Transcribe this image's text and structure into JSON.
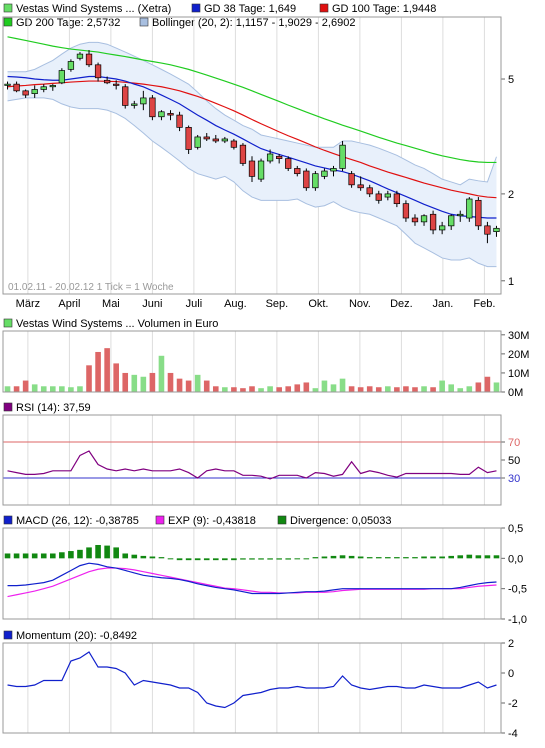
{
  "colors": {
    "price": "#000000",
    "gd38": "#1020cc",
    "gd100": "#e01010",
    "gd200": "#20cc20",
    "bollinger": "#a8bfe0",
    "bollinger_fill": "#e8f0fb",
    "candle_up": "#66dd66",
    "candle_down": "#dd4444",
    "volume_up": "#88dd88",
    "volume_down": "#dd6666",
    "rsi": "#800080",
    "rsi_line_70": "#dd6666",
    "rsi_line_30": "#3333cc",
    "macd": "#1020cc",
    "exp": "#ee22ee",
    "divergence": "#118811",
    "momentum": "#1020cc",
    "grid": "#dddddd"
  },
  "date_range_note": "01.02.11 - 20.02.12   1 Tick = 1 Woche",
  "x_axis_months": [
    "März",
    "April",
    "Mai",
    "Juni",
    "Juli",
    "Aug.",
    "Sep.",
    "Okt.",
    "Nov.",
    "Dez.",
    "Jan.",
    "Feb."
  ],
  "legends": {
    "price": [
      {
        "label": "Vestas Wind Systems ... (Xetra)",
        "icon": "price-swatch"
      },
      {
        "label": "GD 38 Tage: 1,649",
        "icon": "gd38-swatch"
      },
      {
        "label": "GD 100 Tage: 1,9448",
        "icon": "gd100-swatch"
      },
      {
        "label": "GD 200 Tage: 2,5732",
        "icon": "gd200-swatch"
      },
      {
        "label": "Bollinger (20, 2): 1,1157 - 1,9029 - 2,6902",
        "icon": "bollinger-swatch"
      }
    ],
    "volume": [
      {
        "label": "Vestas Wind Systems ... Volumen in Euro",
        "icon": "volume-swatch"
      }
    ],
    "rsi": [
      {
        "label": "RSI (14): 37,59",
        "icon": "rsi-swatch"
      }
    ],
    "macd": [
      {
        "label": "MACD (26, 12): -0,38785",
        "icon": "macd-swatch"
      },
      {
        "label": "EXP (9): -0,43818",
        "icon": "exp-swatch"
      },
      {
        "label": "Divergence: 0,05033",
        "icon": "divergence-swatch"
      }
    ],
    "momentum": [
      {
        "label": "Momentum (20): -0,8492",
        "icon": "momentum-swatch"
      }
    ]
  },
  "chart_data": [
    {
      "type": "candlestick",
      "title": "Vestas Wind Systems ... (Xetra)",
      "y_scale": "log",
      "ylim": [
        0.9,
        8.2
      ],
      "y_ticks": [
        {
          "v": 5,
          "label": "5"
        },
        {
          "v": 2,
          "label": "2"
        },
        {
          "v": 1,
          "label": "1"
        }
      ],
      "weeks": 55,
      "candles": [
        {
          "o": 4.75,
          "h": 4.9,
          "l": 4.6,
          "c": 4.8
        },
        {
          "o": 4.8,
          "h": 4.9,
          "l": 4.5,
          "c": 4.55
        },
        {
          "o": 4.55,
          "h": 4.6,
          "l": 4.3,
          "c": 4.4
        },
        {
          "o": 4.45,
          "h": 4.75,
          "l": 4.3,
          "c": 4.6
        },
        {
          "o": 4.6,
          "h": 4.8,
          "l": 4.5,
          "c": 4.7
        },
        {
          "o": 4.7,
          "h": 4.8,
          "l": 4.55,
          "c": 4.75
        },
        {
          "o": 4.85,
          "h": 5.45,
          "l": 4.8,
          "c": 5.35
        },
        {
          "o": 5.4,
          "h": 5.85,
          "l": 5.3,
          "c": 5.75
        },
        {
          "o": 5.9,
          "h": 6.2,
          "l": 5.8,
          "c": 6.1
        },
        {
          "o": 6.1,
          "h": 6.3,
          "l": 5.5,
          "c": 5.6
        },
        {
          "o": 5.6,
          "h": 5.7,
          "l": 4.9,
          "c": 5.05
        },
        {
          "o": 4.95,
          "h": 5.1,
          "l": 4.8,
          "c": 4.85
        },
        {
          "o": 4.8,
          "h": 4.95,
          "l": 4.6,
          "c": 4.75
        },
        {
          "o": 4.7,
          "h": 4.8,
          "l": 3.95,
          "c": 4.05
        },
        {
          "o": 4.05,
          "h": 4.2,
          "l": 3.95,
          "c": 4.1
        },
        {
          "o": 4.1,
          "h": 4.55,
          "l": 3.9,
          "c": 4.3
        },
        {
          "o": 4.3,
          "h": 4.4,
          "l": 3.6,
          "c": 3.7
        },
        {
          "o": 3.7,
          "h": 3.9,
          "l": 3.6,
          "c": 3.85
        },
        {
          "o": 3.8,
          "h": 3.9,
          "l": 3.6,
          "c": 3.75
        },
        {
          "o": 3.75,
          "h": 3.85,
          "l": 3.3,
          "c": 3.4
        },
        {
          "o": 3.4,
          "h": 3.45,
          "l": 2.75,
          "c": 2.85
        },
        {
          "o": 2.9,
          "h": 3.2,
          "l": 2.85,
          "c": 3.15
        },
        {
          "o": 3.15,
          "h": 3.25,
          "l": 3.05,
          "c": 3.1
        },
        {
          "o": 3.1,
          "h": 3.2,
          "l": 3.0,
          "c": 3.05
        },
        {
          "o": 3.05,
          "h": 3.15,
          "l": 3.0,
          "c": 3.1
        },
        {
          "o": 3.05,
          "h": 3.1,
          "l": 2.85,
          "c": 2.9
        },
        {
          "o": 2.95,
          "h": 3.0,
          "l": 2.5,
          "c": 2.55
        },
        {
          "o": 2.6,
          "h": 2.7,
          "l": 2.2,
          "c": 2.3
        },
        {
          "o": 2.25,
          "h": 2.65,
          "l": 2.2,
          "c": 2.6
        },
        {
          "o": 2.6,
          "h": 2.85,
          "l": 2.55,
          "c": 2.75
        },
        {
          "o": 2.7,
          "h": 2.75,
          "l": 2.55,
          "c": 2.65
        },
        {
          "o": 2.65,
          "h": 2.7,
          "l": 2.4,
          "c": 2.45
        },
        {
          "o": 2.45,
          "h": 2.5,
          "l": 2.3,
          "c": 2.35
        },
        {
          "o": 2.4,
          "h": 2.45,
          "l": 2.05,
          "c": 2.1
        },
        {
          "o": 2.1,
          "h": 2.4,
          "l": 2.05,
          "c": 2.35
        },
        {
          "o": 2.3,
          "h": 2.45,
          "l": 2.25,
          "c": 2.4
        },
        {
          "o": 2.4,
          "h": 2.5,
          "l": 2.3,
          "c": 2.45
        },
        {
          "o": 2.45,
          "h": 3.05,
          "l": 2.4,
          "c": 2.95
        },
        {
          "o": 2.35,
          "h": 2.4,
          "l": 2.1,
          "c": 2.15
        },
        {
          "o": 2.15,
          "h": 2.3,
          "l": 2.05,
          "c": 2.1
        },
        {
          "o": 2.1,
          "h": 2.15,
          "l": 1.95,
          "c": 2.0
        },
        {
          "o": 2.0,
          "h": 2.05,
          "l": 1.85,
          "c": 1.9
        },
        {
          "o": 1.95,
          "h": 2.05,
          "l": 1.9,
          "c": 2.0
        },
        {
          "o": 2.0,
          "h": 2.05,
          "l": 1.8,
          "c": 1.85
        },
        {
          "o": 1.85,
          "h": 1.9,
          "l": 1.6,
          "c": 1.65
        },
        {
          "o": 1.65,
          "h": 1.7,
          "l": 1.55,
          "c": 1.6
        },
        {
          "o": 1.6,
          "h": 1.7,
          "l": 1.55,
          "c": 1.68
        },
        {
          "o": 1.7,
          "h": 1.75,
          "l": 1.45,
          "c": 1.5
        },
        {
          "o": 1.5,
          "h": 1.6,
          "l": 1.45,
          "c": 1.55
        },
        {
          "o": 1.55,
          "h": 1.7,
          "l": 1.5,
          "c": 1.68
        },
        {
          "o": 1.68,
          "h": 1.75,
          "l": 1.6,
          "c": 1.7
        },
        {
          "o": 1.65,
          "h": 1.95,
          "l": 1.6,
          "c": 1.92
        },
        {
          "o": 1.9,
          "h": 1.95,
          "l": 1.5,
          "c": 1.55
        },
        {
          "o": 1.55,
          "h": 1.6,
          "l": 1.35,
          "c": 1.45
        },
        {
          "o": 1.48,
          "h": 1.55,
          "l": 1.42,
          "c": 1.52
        }
      ],
      "gd38": [
        5.1,
        5.08,
        5.05,
        5.0,
        4.97,
        4.95,
        4.95,
        5.0,
        5.05,
        5.1,
        5.1,
        5.05,
        5.0,
        4.92,
        4.8,
        4.7,
        4.55,
        4.4,
        4.25,
        4.1,
        3.92,
        3.75,
        3.6,
        3.45,
        3.33,
        3.22,
        3.1,
        2.98,
        2.87,
        2.8,
        2.74,
        2.68,
        2.62,
        2.56,
        2.5,
        2.46,
        2.42,
        2.39,
        2.34,
        2.28,
        2.22,
        2.15,
        2.08,
        2.02,
        1.96,
        1.9,
        1.84,
        1.79,
        1.74,
        1.7,
        1.68,
        1.67,
        1.66,
        1.65,
        1.65
      ],
      "gd100": [
        4.7,
        4.73,
        4.75,
        4.78,
        4.8,
        4.83,
        4.85,
        4.88,
        4.9,
        4.92,
        4.92,
        4.91,
        4.9,
        4.87,
        4.84,
        4.8,
        4.75,
        4.7,
        4.63,
        4.55,
        4.45,
        4.35,
        4.24,
        4.12,
        4.0,
        3.88,
        3.75,
        3.62,
        3.5,
        3.39,
        3.28,
        3.18,
        3.09,
        3.0,
        2.91,
        2.83,
        2.76,
        2.69,
        2.63,
        2.57,
        2.5,
        2.44,
        2.38,
        2.33,
        2.28,
        2.23,
        2.18,
        2.14,
        2.1,
        2.06,
        2.03,
        2.0,
        1.97,
        1.95,
        1.94
      ],
      "gd200": [
        7.0,
        6.9,
        6.8,
        6.7,
        6.6,
        6.5,
        6.42,
        6.35,
        6.3,
        6.25,
        6.2,
        6.12,
        6.05,
        5.98,
        5.9,
        5.82,
        5.75,
        5.68,
        5.6,
        5.5,
        5.4,
        5.28,
        5.16,
        5.04,
        4.92,
        4.8,
        4.68,
        4.55,
        4.42,
        4.3,
        4.18,
        4.06,
        3.95,
        3.84,
        3.74,
        3.64,
        3.55,
        3.46,
        3.38,
        3.3,
        3.22,
        3.14,
        3.07,
        3.0,
        2.94,
        2.88,
        2.82,
        2.76,
        2.71,
        2.67,
        2.63,
        2.6,
        2.58,
        2.57,
        2.57
      ],
      "boll_upper": [
        5.3,
        5.3,
        5.3,
        5.4,
        5.6,
        5.8,
        6.1,
        6.4,
        6.6,
        6.7,
        6.7,
        6.6,
        6.4,
        6.2,
        6.0,
        5.8,
        5.6,
        5.4,
        5.2,
        5.0,
        4.8,
        4.5,
        4.2,
        3.95,
        3.75,
        3.6,
        3.45,
        3.35,
        3.2,
        3.15,
        3.1,
        3.05,
        3.0,
        2.95,
        2.9,
        2.9,
        2.9,
        3.05,
        3.05,
        3.0,
        2.95,
        2.88,
        2.8,
        2.72,
        2.62,
        2.52,
        2.45,
        2.35,
        2.25,
        2.2,
        2.15,
        2.25,
        2.22,
        2.2,
        2.69
      ],
      "boll_lower": [
        4.2,
        4.25,
        4.3,
        4.3,
        4.3,
        4.25,
        4.1,
        4.0,
        3.95,
        3.95,
        3.95,
        3.9,
        3.8,
        3.65,
        3.45,
        3.25,
        3.05,
        2.9,
        2.75,
        2.6,
        2.45,
        2.35,
        2.3,
        2.25,
        2.3,
        2.2,
        2.05,
        1.95,
        1.9,
        1.9,
        1.9,
        1.9,
        1.92,
        1.85,
        1.8,
        1.82,
        1.88,
        1.8,
        1.75,
        1.72,
        1.7,
        1.65,
        1.6,
        1.55,
        1.45,
        1.35,
        1.3,
        1.25,
        1.2,
        1.18,
        1.18,
        1.2,
        1.15,
        1.12,
        1.12
      ]
    },
    {
      "type": "bar",
      "title": "Vestas Wind Systems ... Volumen in Euro",
      "unit": "M",
      "ylim": [
        0,
        32
      ],
      "y_ticks": [
        {
          "v": 30,
          "label": "30M"
        },
        {
          "v": 20,
          "label": "20M"
        },
        {
          "v": 10,
          "label": "10M"
        },
        {
          "v": 0,
          "label": "0M"
        }
      ],
      "values": [
        3,
        3,
        6,
        4,
        3,
        3,
        3,
        2.5,
        3,
        14,
        21,
        23,
        15,
        10,
        9,
        8,
        10,
        19,
        10,
        7,
        6,
        9,
        6,
        3,
        2.5,
        2.5,
        2,
        3,
        2,
        3,
        2.5,
        3,
        4,
        5,
        2,
        6,
        4,
        7,
        3,
        2.5,
        3,
        2.5,
        3,
        2.5,
        3,
        2.5,
        3,
        2.5,
        6,
        4,
        2,
        3,
        5,
        8,
        5
      ]
    },
    {
      "type": "line",
      "title": "RSI (14): 37,59",
      "ylim": [
        0,
        100
      ],
      "y_ticks": [
        {
          "v": 70,
          "label": "70"
        },
        {
          "v": 50,
          "label": "50"
        },
        {
          "v": 30,
          "label": "30"
        }
      ],
      "reference_lines": [
        70,
        30
      ],
      "values": [
        38,
        36,
        34,
        34,
        35,
        38,
        38,
        38,
        55,
        60,
        45,
        40,
        38,
        40,
        38,
        40,
        38,
        38,
        38,
        40,
        36,
        30,
        38,
        40,
        38,
        38,
        33,
        33,
        32,
        29,
        33,
        33,
        33,
        30,
        36,
        35,
        32,
        34,
        48,
        35,
        38,
        36,
        33,
        31,
        35,
        35,
        35,
        35,
        35,
        35,
        34,
        34,
        42,
        36,
        38
      ]
    },
    {
      "type": "line+bar",
      "title": "MACD (26, 12): -0,38785",
      "ylim": [
        -1.0,
        0.5
      ],
      "y_ticks": [
        {
          "v": 0.5,
          "label": "0,5"
        },
        {
          "v": 0.0,
          "label": "0,0"
        },
        {
          "v": -0.5,
          "label": "-0,5"
        },
        {
          "v": -1.0,
          "label": "-1,0"
        }
      ],
      "series": [
        {
          "name": "MACD",
          "values": [
            -0.45,
            -0.45,
            -0.44,
            -0.42,
            -0.4,
            -0.36,
            -0.28,
            -0.2,
            -0.12,
            -0.08,
            -0.1,
            -0.14,
            -0.16,
            -0.2,
            -0.24,
            -0.28,
            -0.3,
            -0.32,
            -0.33,
            -0.35,
            -0.38,
            -0.42,
            -0.45,
            -0.48,
            -0.5,
            -0.52,
            -0.55,
            -0.58,
            -0.58,
            -0.58,
            -0.58,
            -0.57,
            -0.56,
            -0.55,
            -0.55,
            -0.54,
            -0.52,
            -0.5,
            -0.5,
            -0.5,
            -0.5,
            -0.5,
            -0.5,
            -0.5,
            -0.5,
            -0.5,
            -0.5,
            -0.5,
            -0.5,
            -0.5,
            -0.48,
            -0.45,
            -0.42,
            -0.4,
            -0.39
          ]
        },
        {
          "name": "EXP",
          "values": [
            -0.63,
            -0.6,
            -0.57,
            -0.54,
            -0.5,
            -0.46,
            -0.4,
            -0.34,
            -0.28,
            -0.22,
            -0.18,
            -0.16,
            -0.16,
            -0.17,
            -0.19,
            -0.22,
            -0.25,
            -0.28,
            -0.31,
            -0.34,
            -0.37,
            -0.4,
            -0.43,
            -0.46,
            -0.49,
            -0.5,
            -0.52,
            -0.54,
            -0.56,
            -0.56,
            -0.57,
            -0.57,
            -0.57,
            -0.56,
            -0.56,
            -0.56,
            -0.55,
            -0.53,
            -0.52,
            -0.51,
            -0.51,
            -0.51,
            -0.51,
            -0.51,
            -0.51,
            -0.51,
            -0.51,
            -0.5,
            -0.5,
            -0.5,
            -0.5,
            -0.48,
            -0.46,
            -0.45,
            -0.44
          ]
        },
        {
          "name": "Divergence",
          "values": [
            0.08,
            0.08,
            0.08,
            0.08,
            0.08,
            0.08,
            0.1,
            0.12,
            0.14,
            0.18,
            0.22,
            0.21,
            0.18,
            0.08,
            0.06,
            0.04,
            0.03,
            0.02,
            0.0,
            -0.03,
            -0.03,
            -0.03,
            -0.03,
            -0.03,
            -0.03,
            -0.03,
            -0.02,
            -0.02,
            -0.02,
            -0.02,
            -0.02,
            -0.02,
            0.0,
            0.0,
            0.02,
            0.03,
            0.04,
            0.05,
            0.04,
            0.03,
            0.02,
            0.02,
            0.02,
            0.02,
            0.02,
            0.02,
            0.03,
            0.03,
            0.03,
            0.04,
            0.05,
            0.06,
            0.05,
            0.05,
            0.05
          ]
        }
      ]
    },
    {
      "type": "line",
      "title": "Momentum (20): -0,8492",
      "ylim": [
        -4,
        2
      ],
      "y_ticks": [
        {
          "v": 2,
          "label": "2"
        },
        {
          "v": 0,
          "label": "0"
        },
        {
          "v": -2,
          "label": "-2"
        },
        {
          "v": -4,
          "label": "-4"
        }
      ],
      "values": [
        -0.8,
        -0.9,
        -0.9,
        -0.8,
        -0.5,
        -0.5,
        -0.5,
        0.8,
        1.0,
        1.4,
        0.4,
        0.4,
        0.3,
        0.0,
        -0.8,
        -0.5,
        -0.6,
        -0.7,
        -0.8,
        -1.0,
        -1.0,
        -1.3,
        -2.0,
        -2.2,
        -2.3,
        -2.0,
        -1.5,
        -1.4,
        -1.3,
        -1.1,
        -1.0,
        -1.0,
        -0.9,
        -1.0,
        -1.0,
        -1.0,
        -0.9,
        -0.2,
        -0.8,
        -1.0,
        -1.1,
        -1.0,
        -0.9,
        -0.9,
        -1.0,
        -1.0,
        -0.8,
        -0.9,
        -1.0,
        -1.0,
        -1.0,
        -0.8,
        -0.6,
        -1.0,
        -0.8
      ]
    }
  ]
}
